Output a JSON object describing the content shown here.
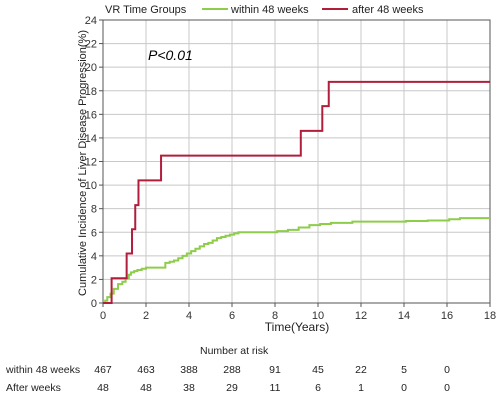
{
  "chart_data": {
    "type": "line",
    "legend": {
      "title": "VR Time Groups",
      "placement": "top",
      "entries": [
        {
          "label": "within 48 weeks",
          "color": "#8dcd4a"
        },
        {
          "label": "after 48 weeks",
          "color": "#b01e3c"
        }
      ]
    },
    "annotation": "P<0.01",
    "xlabel": "Time(Years)",
    "ylabel": "Cumulative Incidence of Liver Disease Progression(%)",
    "xlim": [
      0,
      18
    ],
    "ylim": [
      0,
      24
    ],
    "xticks": [
      0,
      2,
      4,
      6,
      8,
      10,
      12,
      14,
      16,
      18
    ],
    "yticks": [
      0,
      2,
      4,
      6,
      8,
      10,
      12,
      14,
      16,
      18,
      20,
      22,
      24
    ],
    "grid": true,
    "step": true,
    "series": [
      {
        "name": "within 48 weeks",
        "color": "#8dcd4a",
        "x": [
          0,
          0.1,
          0.2,
          0.35,
          0.5,
          0.7,
          0.9,
          1.05,
          1.2,
          1.3,
          1.45,
          1.6,
          1.8,
          2.0,
          2.5,
          2.9,
          3.1,
          3.3,
          3.5,
          3.7,
          3.9,
          4.1,
          4.3,
          4.5,
          4.7,
          4.9,
          5.1,
          5.3,
          5.5,
          5.7,
          5.9,
          6.1,
          6.3,
          8.1,
          8.6,
          9.1,
          9.6,
          10.1,
          10.6,
          11.6,
          14.1,
          15.1,
          16.1,
          16.6,
          18
        ],
        "y": [
          0,
          0.2,
          0.5,
          0.8,
          1.2,
          1.6,
          1.8,
          2.1,
          2.4,
          2.6,
          2.7,
          2.8,
          2.9,
          3.0,
          3.0,
          3.4,
          3.5,
          3.6,
          3.8,
          4.0,
          4.2,
          4.4,
          4.6,
          4.8,
          5.0,
          5.1,
          5.3,
          5.5,
          5.6,
          5.7,
          5.8,
          5.9,
          6.0,
          6.1,
          6.2,
          6.4,
          6.6,
          6.7,
          6.8,
          6.9,
          6.95,
          7.0,
          7.1,
          7.2,
          7.2
        ]
      },
      {
        "name": "after 48 weeks",
        "color": "#b01e3c",
        "x": [
          0,
          0.4,
          1.1,
          1.35,
          1.5,
          1.65,
          1.8,
          2.7,
          9.2,
          10.2,
          10.5,
          18
        ],
        "y": [
          0,
          2.1,
          4.2,
          6.25,
          8.3,
          10.4,
          10.4,
          12.5,
          14.6,
          16.7,
          18.75,
          18.75
        ]
      }
    ]
  },
  "risk_table": {
    "title": "Number at risk",
    "rows": [
      {
        "label": "within 48 weeks",
        "values": [
          "467",
          "463",
          "388",
          "288",
          "91",
          "45",
          "22",
          "5",
          "0"
        ]
      },
      {
        "label": "After weeks",
        "values": [
          "48",
          "48",
          "38",
          "29",
          "11",
          "6",
          "1",
          "0",
          "0"
        ]
      }
    ]
  }
}
